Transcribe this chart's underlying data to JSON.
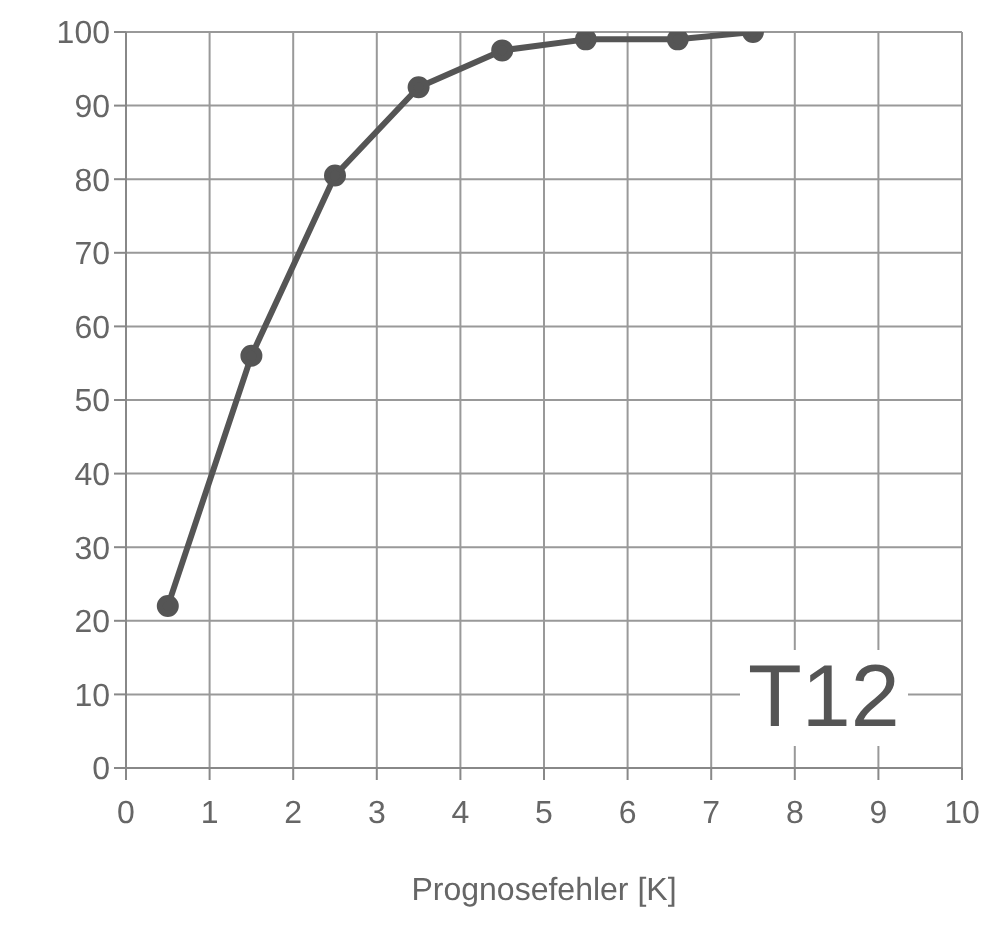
{
  "chart_data": {
    "type": "line",
    "xlabel": "Prognosefehler [K]",
    "annotations": [
      "T12"
    ],
    "x": [
      0.5,
      1.5,
      2.5,
      3.5,
      4.5,
      5.5,
      6.6,
      7.5
    ],
    "series": [
      {
        "color": "#555555",
        "values": [
          22,
          56,
          80.5,
          92.5,
          97.5,
          99,
          99,
          100
        ]
      }
    ],
    "xlim": [
      0,
      10
    ],
    "xticks": [
      0,
      1,
      2,
      3,
      4,
      5,
      6,
      7,
      8,
      9,
      10
    ],
    "ylim": [
      0,
      100
    ],
    "yticks": [
      0,
      10,
      20,
      30,
      40,
      50,
      60,
      70,
      80,
      90,
      100
    ],
    "grid": true,
    "marker": "circle",
    "line_style": "solid"
  }
}
